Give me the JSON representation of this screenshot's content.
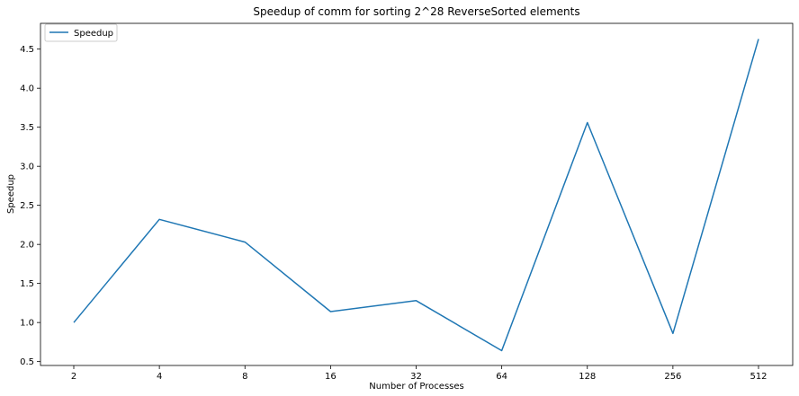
{
  "chart_data": {
    "type": "line",
    "title": "Speedup of comm for sorting 2^28 ReverseSorted elements",
    "xlabel": "Number of Processes",
    "ylabel": "Speedup",
    "categories": [
      "2",
      "4",
      "8",
      "16",
      "32",
      "64",
      "128",
      "256",
      "512"
    ],
    "series": [
      {
        "name": "Speedup",
        "color": "#1f77b4",
        "values": [
          1.0,
          2.32,
          2.03,
          1.14,
          1.28,
          0.64,
          3.56,
          0.86,
          4.63
        ]
      }
    ],
    "yticks": [
      "0.5",
      "1.0",
      "1.5",
      "2.0",
      "2.5",
      "3.0",
      "3.5",
      "4.0",
      "4.5"
    ],
    "ylim": [
      0.45,
      4.83
    ],
    "legend": "top-left",
    "grid": false
  }
}
